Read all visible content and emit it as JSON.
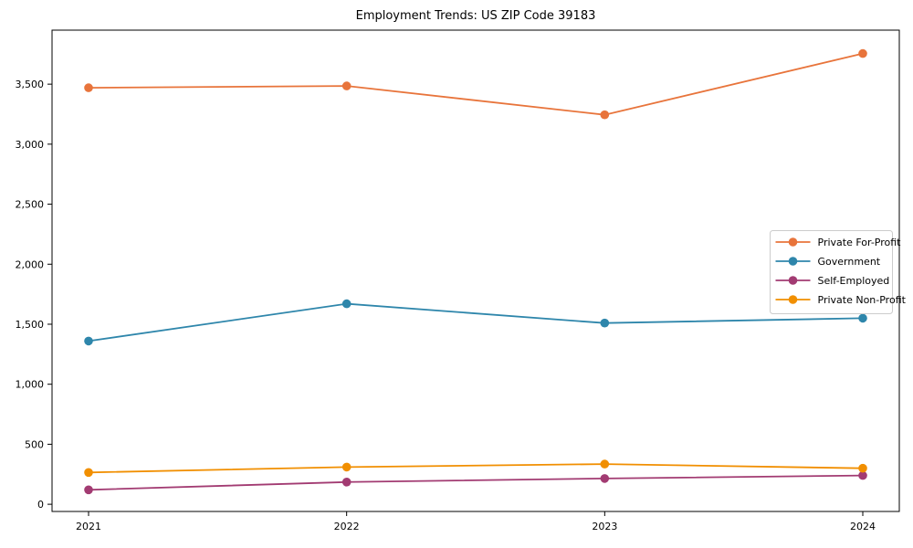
{
  "title": "Employment Trends: US ZIP Code 39183",
  "chart_data": {
    "type": "line",
    "title": "Employment Trends: US ZIP Code 39183",
    "xlabel": "",
    "ylabel": "",
    "categories": [
      "2021",
      "2022",
      "2023",
      "2024"
    ],
    "series": [
      {
        "name": "Private For-Profit",
        "color": "#E8743B",
        "values": [
          3470,
          3485,
          3245,
          3755
        ]
      },
      {
        "name": "Government",
        "color": "#2E86AB",
        "values": [
          1360,
          1670,
          1510,
          1550
        ]
      },
      {
        "name": "Self-Employed",
        "color": "#A23B72",
        "values": [
          120,
          185,
          215,
          240
        ]
      },
      {
        "name": "Private Non-Profit",
        "color": "#F18F01",
        "values": [
          265,
          310,
          335,
          300
        ]
      }
    ],
    "ylim": [
      -60,
      3950
    ],
    "yticks": [
      0,
      500,
      1000,
      1500,
      2000,
      2500,
      3000,
      3500
    ],
    "grid": false,
    "legend_position": "right-middle",
    "marker": "circle",
    "frame_color": "#000000",
    "legend_border_color": "#cccccc",
    "background_color": "#ffffff"
  }
}
